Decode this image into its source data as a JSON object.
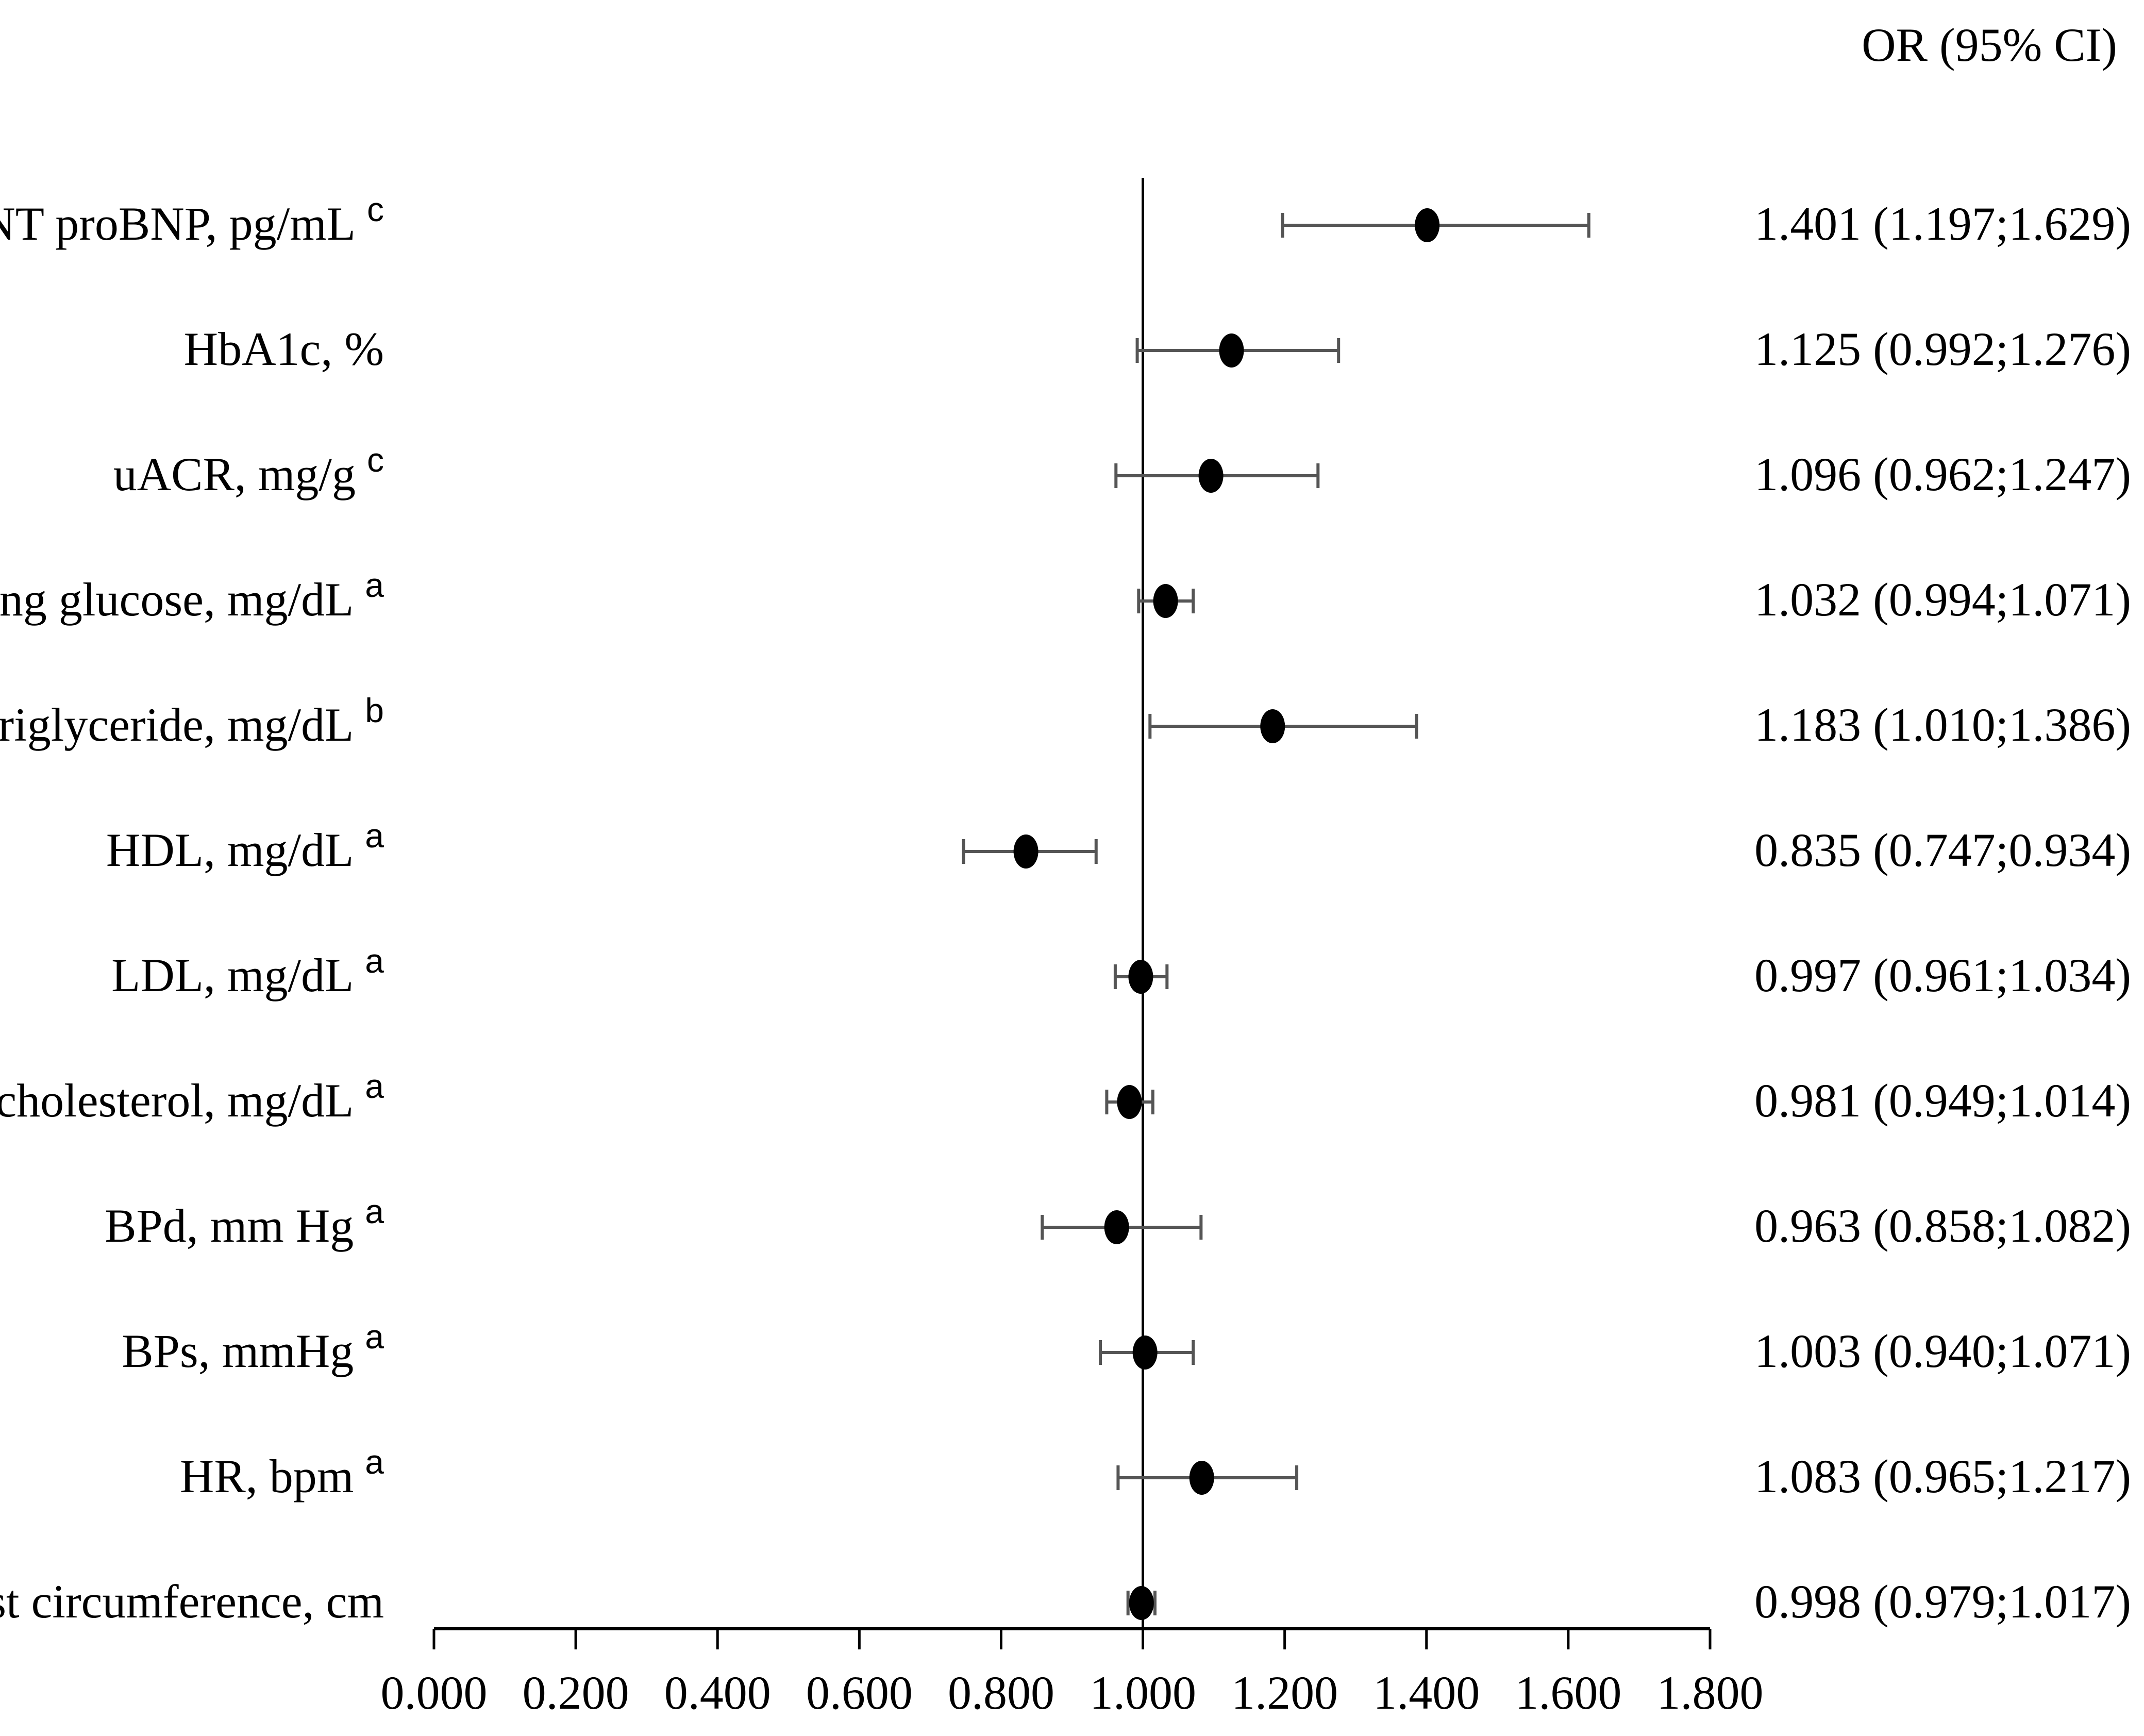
{
  "chart_data": {
    "type": "forest",
    "header": "OR (95% CI)",
    "reference_line": 1.0,
    "x_range": [
      0,
      1.8
    ],
    "x_ticks": [
      "0.000",
      "0.200",
      "0.400",
      "0.600",
      "0.800",
      "1.000",
      "1.200",
      "1.400",
      "1.600",
      "1.800"
    ],
    "rows": [
      {
        "label": "NT proBNP, pg/mL",
        "sup": "c",
        "or": 1.401,
        "lo": 1.197,
        "hi": 1.629,
        "text": "1.401 (1.197;1.629)"
      },
      {
        "label": "HbA1c, %",
        "sup": "",
        "or": 1.125,
        "lo": 0.992,
        "hi": 1.276,
        "text": "1.125 (0.992;1.276)"
      },
      {
        "label": "uACR, mg/g",
        "sup": "c",
        "or": 1.096,
        "lo": 0.962,
        "hi": 1.247,
        "text": "1.096 (0.962;1.247)"
      },
      {
        "label": "Fasting glucose, mg/dL",
        "sup": "a",
        "or": 1.032,
        "lo": 0.994,
        "hi": 1.071,
        "text": "1.032 (0.994;1.071)"
      },
      {
        "label": "Triglyceride, mg/dL",
        "sup": "b",
        "or": 1.183,
        "lo": 1.01,
        "hi": 1.386,
        "text": "1.183 (1.010;1.386)"
      },
      {
        "label": "HDL, mg/dL",
        "sup": "a",
        "or": 0.835,
        "lo": 0.747,
        "hi": 0.934,
        "text": "0.835 (0.747;0.934)"
      },
      {
        "label": "LDL, mg/dL",
        "sup": "a",
        "or": 0.997,
        "lo": 0.961,
        "hi": 1.034,
        "text": "0.997 (0.961;1.034)"
      },
      {
        "label": "Total cholesterol, mg/dL",
        "sup": "a",
        "or": 0.981,
        "lo": 0.949,
        "hi": 1.014,
        "text": "0.981 (0.949;1.014)"
      },
      {
        "label": "BPd, mm Hg",
        "sup": "a",
        "or": 0.963,
        "lo": 0.858,
        "hi": 1.082,
        "text": "0.963 (0.858;1.082)"
      },
      {
        "label": "BPs, mmHg",
        "sup": "a",
        "or": 1.003,
        "lo": 0.94,
        "hi": 1.071,
        "text": "1.003 (0.940;1.071)"
      },
      {
        "label": "HR, bpm",
        "sup": "a",
        "or": 1.083,
        "lo": 0.965,
        "hi": 1.217,
        "text": "1.083 (0.965;1.217)"
      },
      {
        "label": "Waist circumference, cm",
        "sup": "",
        "or": 0.998,
        "lo": 0.979,
        "hi": 1.017,
        "text": "0.998 (0.979;1.017)"
      }
    ]
  }
}
